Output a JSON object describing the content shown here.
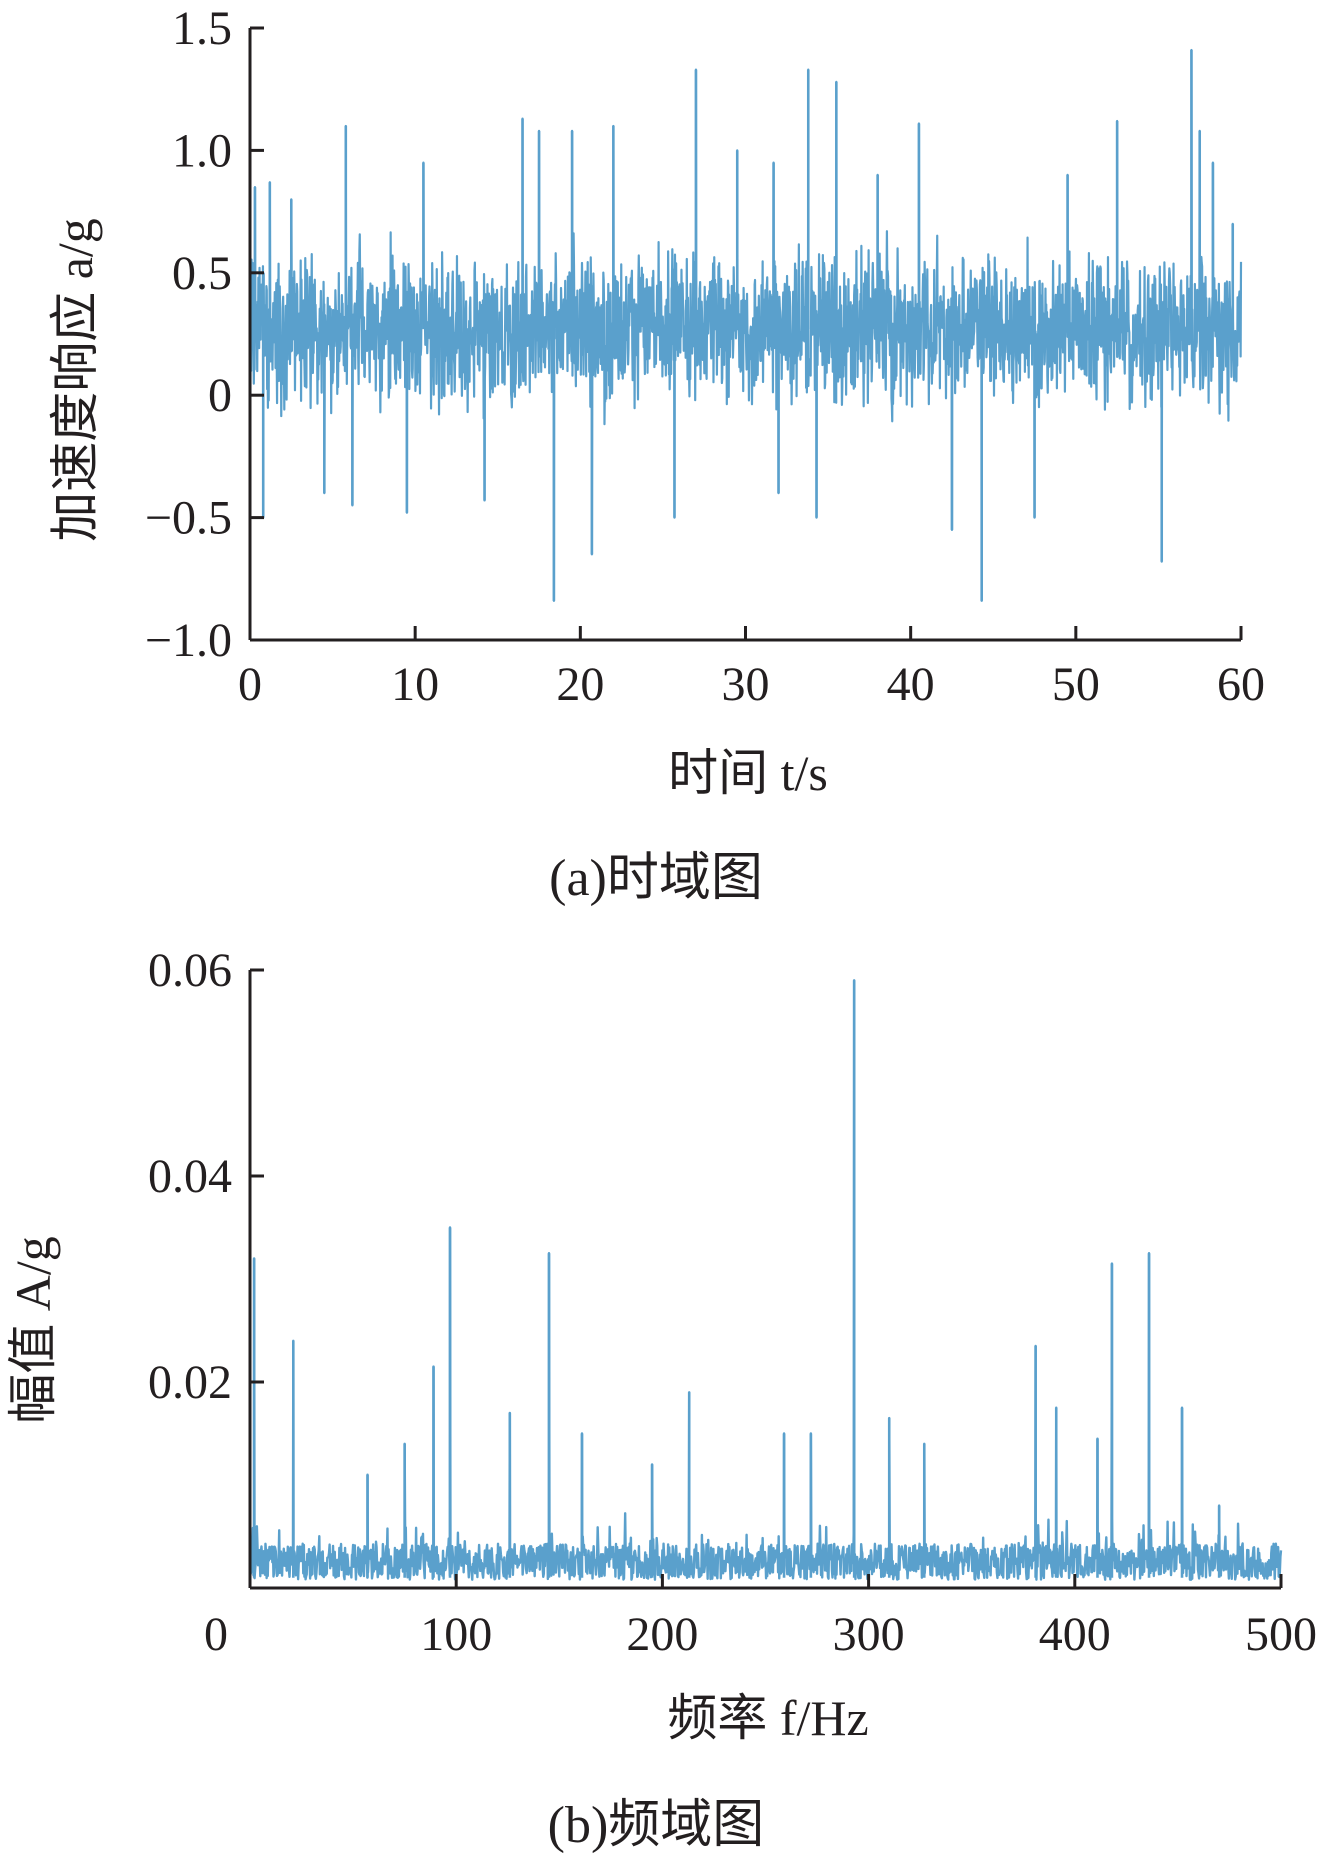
{
  "chart_data": [
    {
      "type": "line",
      "panel_label": "(a)时域图",
      "xlabel": "时间 t/s",
      "ylabel": "加速度响应 a/g",
      "xlim": [
        0,
        60
      ],
      "ylim": [
        -1.0,
        1.5
      ],
      "xticks": [
        "0",
        "10",
        "20",
        "30",
        "40",
        "50",
        "60"
      ],
      "yticks": [
        "−1.0",
        "−0.5",
        "0",
        "0.5",
        "1.0",
        "1.5"
      ],
      "color": "#5aa0cc",
      "grid": false,
      "series": [
        {
          "description": "dense random acceleration signal, base band roughly 0 to 0.55 g",
          "peaks": [
            {
              "x": 0.3,
              "y": 0.85
            },
            {
              "x": 0.8,
              "y": -0.5
            },
            {
              "x": 1.2,
              "y": 0.87
            },
            {
              "x": 2.5,
              "y": 0.8
            },
            {
              "x": 4.5,
              "y": -0.4
            },
            {
              "x": 5.8,
              "y": 1.1
            },
            {
              "x": 6.2,
              "y": -0.45
            },
            {
              "x": 9.5,
              "y": -0.48
            },
            {
              "x": 10.5,
              "y": 0.95
            },
            {
              "x": 14.2,
              "y": -0.43
            },
            {
              "x": 16.5,
              "y": 1.13
            },
            {
              "x": 17.5,
              "y": 1.08
            },
            {
              "x": 18.4,
              "y": -0.84
            },
            {
              "x": 19.5,
              "y": 1.08
            },
            {
              "x": 20.7,
              "y": -0.65
            },
            {
              "x": 22.0,
              "y": 1.1
            },
            {
              "x": 25.7,
              "y": -0.5
            },
            {
              "x": 27.0,
              "y": 1.33
            },
            {
              "x": 29.5,
              "y": 1.0
            },
            {
              "x": 31.7,
              "y": 0.95
            },
            {
              "x": 32.0,
              "y": -0.4
            },
            {
              "x": 33.8,
              "y": 1.33
            },
            {
              "x": 34.3,
              "y": -0.5
            },
            {
              "x": 35.5,
              "y": 1.28
            },
            {
              "x": 38.0,
              "y": 0.9
            },
            {
              "x": 40.5,
              "y": 1.11
            },
            {
              "x": 42.5,
              "y": -0.55
            },
            {
              "x": 44.3,
              "y": -0.84
            },
            {
              "x": 47.5,
              "y": -0.5
            },
            {
              "x": 49.5,
              "y": 0.9
            },
            {
              "x": 52.5,
              "y": 1.12
            },
            {
              "x": 55.2,
              "y": -0.68
            },
            {
              "x": 57.0,
              "y": 1.41
            },
            {
              "x": 57.5,
              "y": 1.08
            },
            {
              "x": 58.3,
              "y": 0.95
            },
            {
              "x": 59.5,
              "y": 0.7
            }
          ]
        }
      ]
    },
    {
      "type": "line",
      "panel_label": "(b)频域图",
      "xlabel": "频率 f/Hz",
      "ylabel": "幅值 A/g",
      "xlim": [
        0,
        500
      ],
      "ylim": [
        0,
        0.06
      ],
      "xticks": [
        "0",
        "100",
        "200",
        "300",
        "400",
        "500"
      ],
      "yticks": [
        "0.02",
        "0.04",
        "0.06"
      ],
      "color": "#5aa0cc",
      "grid": false,
      "series": [
        {
          "description": "amplitude spectrum, noise floor about 0.002 to 0.005 g",
          "peaks": [
            {
              "x": 2,
              "y": 0.032
            },
            {
              "x": 21,
              "y": 0.024
            },
            {
              "x": 57,
              "y": 0.011
            },
            {
              "x": 75,
              "y": 0.014
            },
            {
              "x": 89,
              "y": 0.0215
            },
            {
              "x": 97,
              "y": 0.035
            },
            {
              "x": 126,
              "y": 0.017
            },
            {
              "x": 145,
              "y": 0.0325
            },
            {
              "x": 161,
              "y": 0.015
            },
            {
              "x": 195,
              "y": 0.012
            },
            {
              "x": 213,
              "y": 0.019
            },
            {
              "x": 259,
              "y": 0.015
            },
            {
              "x": 272,
              "y": 0.015
            },
            {
              "x": 293,
              "y": 0.059
            },
            {
              "x": 310,
              "y": 0.0165
            },
            {
              "x": 327,
              "y": 0.014
            },
            {
              "x": 381,
              "y": 0.0235
            },
            {
              "x": 391,
              "y": 0.0175
            },
            {
              "x": 411,
              "y": 0.0145
            },
            {
              "x": 418,
              "y": 0.0315
            },
            {
              "x": 436,
              "y": 0.0325
            },
            {
              "x": 452,
              "y": 0.0175
            },
            {
              "x": 470,
              "y": 0.008
            }
          ]
        }
      ]
    }
  ]
}
